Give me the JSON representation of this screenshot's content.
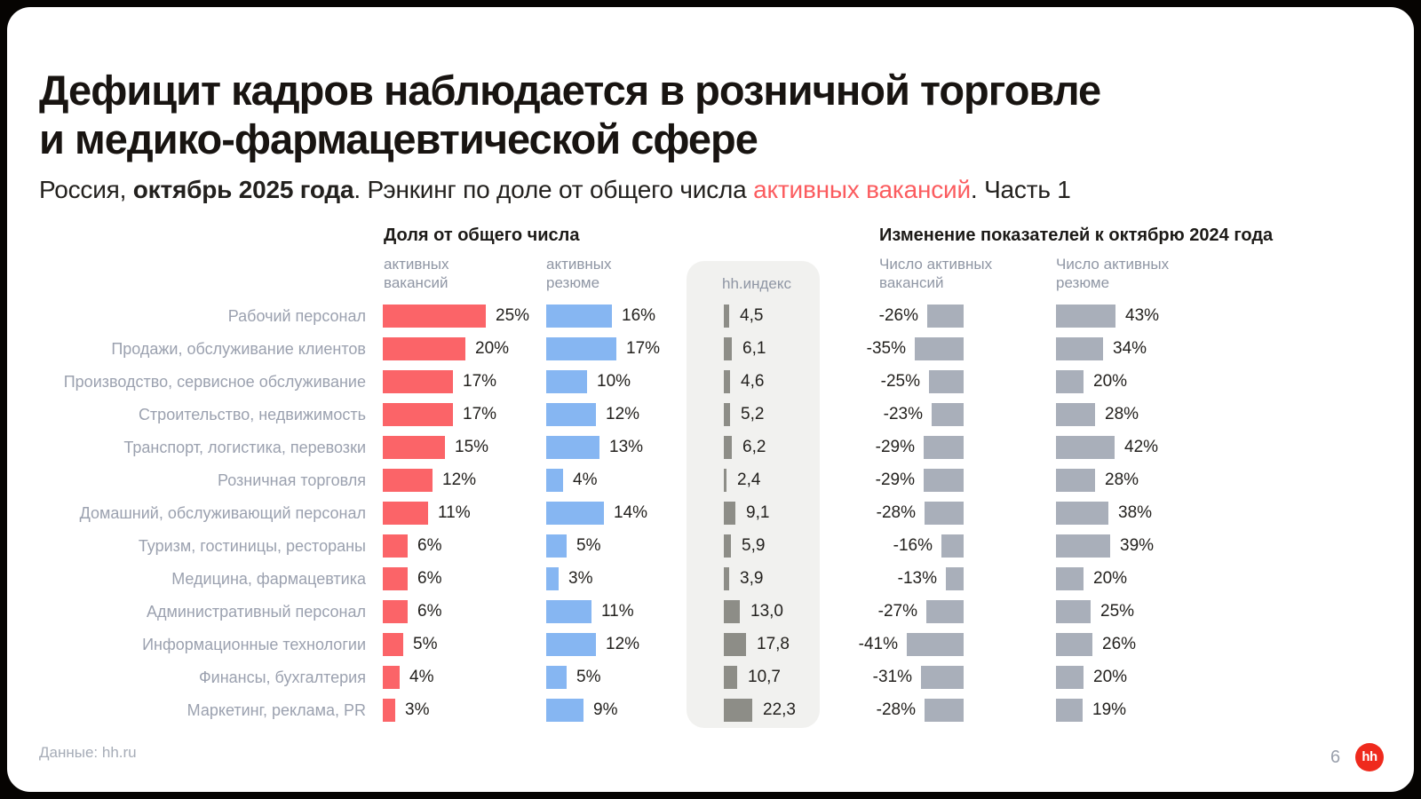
{
  "title_line1": "Дефицит кадров наблюдается в розничной торговле",
  "title_line2": "и медико-фармацевтической сфере",
  "subtitle": {
    "part1": "Россия, ",
    "part2_bold": "октябрь 2025 года",
    "part3": ". Рэнкинг по доле от общего числа ",
    "part4_accent": "активных вакансий",
    "part5": ". Часть 1"
  },
  "headers": {
    "share_group": "Доля от общего числа",
    "share_vacancies": "активных\nвакансий",
    "share_resumes": "активных\nрезюме",
    "hh_index": "hh.индекс",
    "change_group": "Изменение показателей к октябрю 2024 года",
    "change_vacancies": "Число активных\nвакансий",
    "change_resumes": "Число активных\nрезюме"
  },
  "footer": {
    "source": "Данные: hh.ru",
    "page": "6",
    "logo_text": "hh"
  },
  "colors": {
    "vacancies_bar": "#FB6468",
    "resumes_bar": "#86B6F2",
    "hh_index_bar": "#8D8D87",
    "change_bar": "#A9AFBA",
    "accent_text": "#FB5C5F",
    "logo_red": "#EF2A1D",
    "panel_bg": "#F1F1EF"
  },
  "chart_data": {
    "type": "bar",
    "title": "Дефицит кадров наблюдается в розничной торговле и медико-фармацевтической сфере",
    "subtitle": "Россия, октябрь 2025 года. Рэнкинг по доле от общего числа активных вакансий. Часть 1",
    "orientation": "horizontal",
    "categories": [
      "Рабочий персонал",
      "Продажи, обслуживание клиентов",
      "Производство, сервисное обслуживание",
      "Строительство, недвижимость",
      "Транспорт, логистика, перевозки",
      "Розничная торговля",
      "Домашний, обслуживающий персонал",
      "Туризм, гостиницы, рестораны",
      "Медицина, фармацевтика",
      "Административный персонал",
      "Информационные технологии",
      "Финансы, бухгалтерия",
      "Маркетинг, реклама, PR"
    ],
    "series": [
      {
        "name": "Доля от общего числа активных вакансий",
        "unit": "%",
        "values": [
          25,
          20,
          17,
          17,
          15,
          12,
          11,
          6,
          6,
          6,
          5,
          4,
          3
        ]
      },
      {
        "name": "Доля от общего числа активных резюме",
        "unit": "%",
        "values": [
          16,
          17,
          10,
          12,
          13,
          4,
          14,
          5,
          3,
          11,
          12,
          5,
          9
        ]
      },
      {
        "name": "hh.индекс",
        "unit": "",
        "values": [
          4.5,
          6.1,
          4.6,
          5.2,
          6.2,
          2.4,
          9.1,
          5.9,
          3.9,
          13.0,
          17.8,
          10.7,
          22.3
        ]
      },
      {
        "name": "Изменение числа активных вакансий к октябрю 2024 года",
        "unit": "%",
        "values": [
          -26,
          -35,
          -25,
          -23,
          -29,
          -29,
          -28,
          -16,
          -13,
          -27,
          -41,
          -31,
          -28
        ]
      },
      {
        "name": "Изменение числа активных резюме к октябрю 2024 года",
        "unit": "%",
        "values": [
          43,
          34,
          20,
          28,
          42,
          28,
          38,
          39,
          20,
          25,
          26,
          20,
          19
        ]
      }
    ]
  }
}
